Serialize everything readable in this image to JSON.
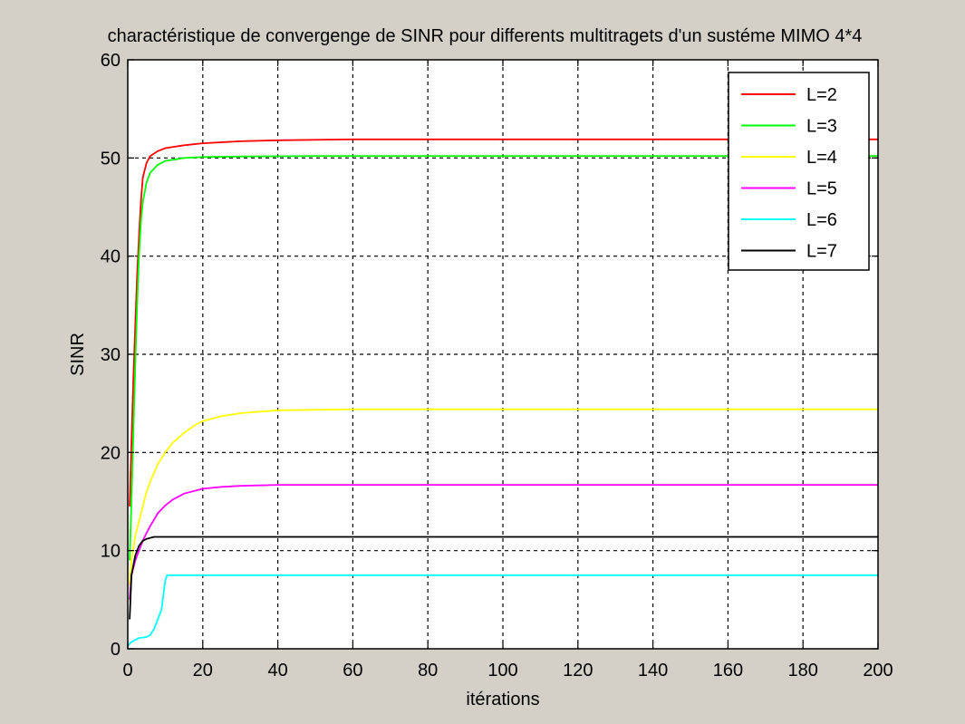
{
  "chart_data": {
    "type": "line",
    "title": "charactéristique de convergenge de SINR pour differents multitragets d'un sustéme MIMO 4*4",
    "xlabel": "itérations",
    "ylabel": "SINR",
    "xlim": [
      0,
      200
    ],
    "ylim": [
      0,
      60
    ],
    "xticks": [
      0,
      20,
      40,
      60,
      80,
      100,
      120,
      140,
      160,
      180,
      200
    ],
    "yticks": [
      0,
      10,
      20,
      30,
      40,
      50,
      60
    ],
    "grid": true,
    "legend_position": "top-right",
    "background": "#ffffff",
    "frame_background": "#d4d0c8",
    "series": [
      {
        "name": "L=2",
        "color": "#ff0000",
        "points": [
          [
            0.5,
            14.5
          ],
          [
            1,
            21
          ],
          [
            1.5,
            27.5
          ],
          [
            2,
            33
          ],
          [
            2.5,
            38
          ],
          [
            3,
            42
          ],
          [
            3.5,
            45.5
          ],
          [
            4,
            48
          ],
          [
            5,
            49.5
          ],
          [
            6,
            50.2
          ],
          [
            8,
            50.7
          ],
          [
            10,
            51
          ],
          [
            15,
            51.3
          ],
          [
            20,
            51.5
          ],
          [
            30,
            51.7
          ],
          [
            40,
            51.8
          ],
          [
            60,
            51.9
          ],
          [
            100,
            51.9
          ],
          [
            150,
            51.9
          ],
          [
            200,
            51.9
          ]
        ]
      },
      {
        "name": "L=3",
        "color": "#00ff00",
        "points": [
          [
            0.5,
            9
          ],
          [
            1,
            15
          ],
          [
            1.5,
            22
          ],
          [
            2,
            29
          ],
          [
            2.5,
            35
          ],
          [
            3,
            40
          ],
          [
            3.5,
            43.5
          ],
          [
            4,
            45.5
          ],
          [
            5,
            47.5
          ],
          [
            6,
            48.5
          ],
          [
            8,
            49.3
          ],
          [
            10,
            49.7
          ],
          [
            15,
            50
          ],
          [
            20,
            50.1
          ],
          [
            30,
            50.15
          ],
          [
            50,
            50.2
          ],
          [
            100,
            50.2
          ],
          [
            200,
            50.2
          ]
        ]
      },
      {
        "name": "L=4",
        "color": "#ffff00",
        "points": [
          [
            0.5,
            6.5
          ],
          [
            1,
            9
          ],
          [
            2,
            11.5
          ],
          [
            3,
            13
          ],
          [
            4,
            14.5
          ],
          [
            5,
            16
          ],
          [
            6,
            17
          ],
          [
            8,
            18.8
          ],
          [
            10,
            20
          ],
          [
            12,
            21
          ],
          [
            15,
            22
          ],
          [
            18,
            22.8
          ],
          [
            20,
            23.2
          ],
          [
            25,
            23.7
          ],
          [
            30,
            24
          ],
          [
            40,
            24.3
          ],
          [
            60,
            24.4
          ],
          [
            100,
            24.4
          ],
          [
            200,
            24.4
          ]
        ]
      },
      {
        "name": "L=5",
        "color": "#ff00ff",
        "points": [
          [
            0.5,
            5
          ],
          [
            1,
            7.5
          ],
          [
            2,
            9
          ],
          [
            3,
            10
          ],
          [
            4,
            11
          ],
          [
            5,
            11.8
          ],
          [
            6,
            12.5
          ],
          [
            8,
            13.8
          ],
          [
            10,
            14.6
          ],
          [
            12,
            15.2
          ],
          [
            15,
            15.8
          ],
          [
            20,
            16.3
          ],
          [
            25,
            16.5
          ],
          [
            30,
            16.6
          ],
          [
            40,
            16.7
          ],
          [
            60,
            16.7
          ],
          [
            100,
            16.7
          ],
          [
            200,
            16.7
          ]
        ]
      },
      {
        "name": "L=6",
        "color": "#00ffff",
        "points": [
          [
            0,
            0.3
          ],
          [
            1,
            0.7
          ],
          [
            2,
            0.9
          ],
          [
            3,
            1.1
          ],
          [
            5,
            1.2
          ],
          [
            6,
            1.4
          ],
          [
            7,
            2
          ],
          [
            8,
            3
          ],
          [
            9,
            4
          ],
          [
            9.5,
            5.5
          ],
          [
            10,
            7
          ],
          [
            10.5,
            7.5
          ],
          [
            15,
            7.5
          ],
          [
            30,
            7.5
          ],
          [
            100,
            7.5
          ],
          [
            200,
            7.5
          ]
        ]
      },
      {
        "name": "L=7",
        "color": "#000000",
        "points": [
          [
            0.5,
            3
          ],
          [
            1,
            7.5
          ],
          [
            2,
            9.5
          ],
          [
            3,
            10.5
          ],
          [
            4,
            11
          ],
          [
            5,
            11.2
          ],
          [
            7,
            11.4
          ],
          [
            10,
            11.4
          ],
          [
            20,
            11.4
          ],
          [
            50,
            11.4
          ],
          [
            100,
            11.4
          ],
          [
            200,
            11.4
          ]
        ]
      }
    ]
  }
}
